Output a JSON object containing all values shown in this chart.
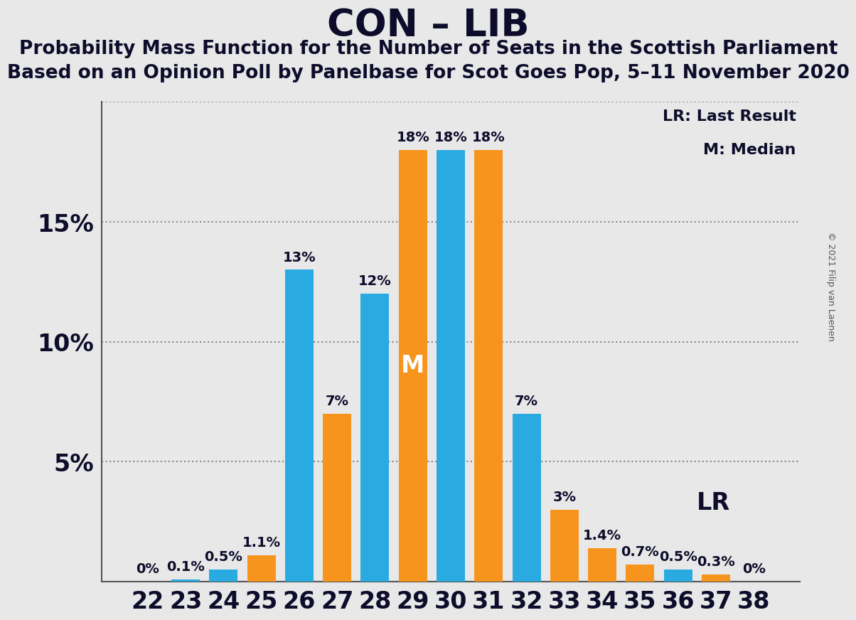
{
  "title": "CON – LIB",
  "subtitle1": "Probability Mass Function for the Number of Seats in the Scottish Parliament",
  "subtitle2": "Based on an Opinion Poll by Panelbase for Scot Goes Pop, 5–11 November 2020",
  "copyright": "© 2021 Filip van Laenen",
  "legend_lr": "LR: Last Result",
  "legend_m": "M: Median",
  "seats": [
    22,
    23,
    24,
    25,
    26,
    27,
    28,
    29,
    30,
    31,
    32,
    33,
    34,
    35,
    36,
    37,
    38
  ],
  "bar_values": [
    0.0,
    0.1,
    0.5,
    1.1,
    13.0,
    7.0,
    12.0,
    18.0,
    18.0,
    18.0,
    7.0,
    3.0,
    1.4,
    0.7,
    0.5,
    0.3,
    0.0
  ],
  "bar_colors": [
    "#29ABE2",
    "#29ABE2",
    "#29ABE2",
    "#F7941D",
    "#29ABE2",
    "#F7941D",
    "#29ABE2",
    "#F7941D",
    "#29ABE2",
    "#F7941D",
    "#29ABE2",
    "#F7941D",
    "#F7941D",
    "#F7941D",
    "#29ABE2",
    "#F7941D",
    "#F7941D"
  ],
  "bar_labels": [
    "0%",
    "0.1%",
    "0.5%",
    "1.1%",
    "13%",
    "7%",
    "12%",
    "18%",
    "18%",
    "18%",
    "7%",
    "3%",
    "1.4%",
    "0.7%",
    "0.5%",
    "0.3%",
    "0%"
  ],
  "blue_color": "#29ABE2",
  "orange_color": "#F7941D",
  "background_color": "#E8E8E8",
  "median_idx": 7,
  "lr_idx": 14,
  "ylim": [
    0,
    20
  ],
  "yticks": [
    0,
    5,
    10,
    15,
    20
  ],
  "ytick_labels": [
    "",
    "5%",
    "10%",
    "15%",
    ""
  ],
  "title_fontsize": 38,
  "subtitle_fontsize": 19,
  "label_fontsize": 14,
  "tick_fontsize": 24,
  "legend_fontsize": 16,
  "annotation_fontsize": 24
}
